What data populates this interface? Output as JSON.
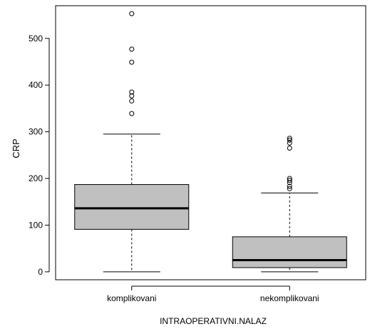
{
  "chart_data": {
    "type": "box",
    "xlabel": "INTRAOPERATIVNI.NALAZ",
    "ylabel": "CRP",
    "ylim": [
      -17,
      570
    ],
    "yticks": [
      0,
      100,
      200,
      300,
      400,
      500
    ],
    "grid": false,
    "legend": "none",
    "box_fill": "#c0c0c0",
    "categories": [
      "komplikovani",
      "nekomplikovani"
    ],
    "boxes": [
      {
        "category": "komplikovani",
        "whisker_low": 0,
        "q1": 91,
        "median": 136,
        "q3": 187,
        "whisker_high": 295,
        "outliers": [
          339,
          366,
          377,
          385,
          449,
          477,
          553
        ]
      },
      {
        "category": "nekomplikovani",
        "whisker_low": 0,
        "q1": 9,
        "median": 25,
        "q3": 75,
        "whisker_high": 169,
        "outliers": [
          178,
          183,
          191,
          196,
          200,
          265,
          276,
          282,
          286
        ]
      }
    ]
  }
}
